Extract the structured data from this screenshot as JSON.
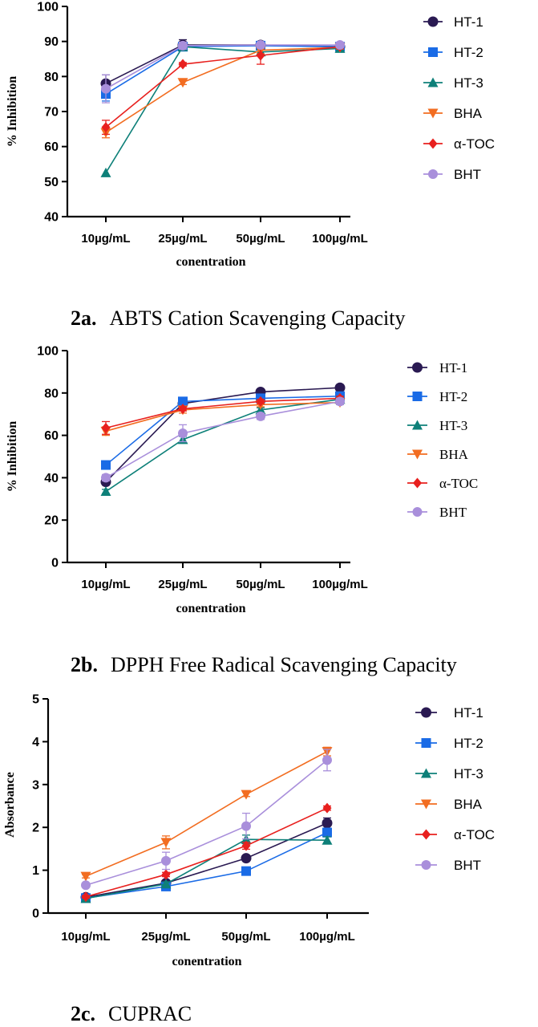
{
  "colors": {
    "HT-1": "#2a1a52",
    "HT-2": "#1a6be6",
    "HT-3": "#0e8079",
    "BHA": "#f26d21",
    "α-TOC": "#e8201e",
    "BHT": "#a98fdb"
  },
  "chart_data": [
    {
      "type": "line",
      "id": "2a",
      "title": "ABTS Cation Scavenging Capacity",
      "caption_prefix": "2a.",
      "xlabel": "conentration",
      "ylabel": "% Inhibition",
      "categories": [
        "10µg/mL",
        "25µg/mL",
        "50µg/mL",
        "100µg/mL"
      ],
      "ylim": [
        40,
        100
      ],
      "yticks": [
        40,
        50,
        60,
        70,
        80,
        90,
        100
      ],
      "series": [
        {
          "name": "HT-1",
          "values": [
            78,
            89,
            89,
            88.5
          ],
          "errors": [
            2.5,
            1.5,
            0.8,
            0.6
          ]
        },
        {
          "name": "HT-2",
          "values": [
            75,
            88.5,
            88.8,
            88.5
          ],
          "errors": [
            2,
            0.8,
            0.6,
            0.5
          ]
        },
        {
          "name": "HT-3",
          "values": [
            52.5,
            88.5,
            87,
            88
          ],
          "errors": [
            0,
            0.8,
            0.7,
            0.6
          ]
        },
        {
          "name": "BHA",
          "values": [
            64,
            78.3,
            87.5,
            88.3
          ],
          "errors": [
            1.5,
            0.6,
            1,
            0.5
          ]
        },
        {
          "name": "α-TOC",
          "values": [
            65.5,
            83.5,
            86,
            88.5
          ],
          "errors": [
            2,
            0.5,
            2.5,
            0.6
          ]
        },
        {
          "name": "BHT",
          "values": [
            76.5,
            88.8,
            89,
            89
          ],
          "errors": [
            4,
            1,
            0.8,
            0.6
          ]
        }
      ]
    },
    {
      "type": "line",
      "id": "2b",
      "title": "DPPH Free Radical Scavenging Capacity",
      "caption_prefix": "2b.",
      "xlabel": "conentration",
      "ylabel": "% Inhibition",
      "categories": [
        "10µg/mL",
        "25µg/mL",
        "50µg/mL",
        "100µg/mL"
      ],
      "ylim": [
        0,
        100
      ],
      "yticks": [
        0,
        20,
        40,
        60,
        80,
        100
      ],
      "series": [
        {
          "name": "HT-1",
          "values": [
            38,
            75,
            80.5,
            82.5
          ],
          "errors": [
            1.5,
            1.5,
            1,
            0.8
          ]
        },
        {
          "name": "HT-2",
          "values": [
            46,
            76,
            77.5,
            78.5
          ],
          "errors": [
            1,
            1,
            1,
            1
          ]
        },
        {
          "name": "HT-3",
          "values": [
            33.5,
            58,
            72,
            77
          ],
          "errors": [
            1,
            1.5,
            1,
            1
          ]
        },
        {
          "name": "BHA",
          "values": [
            62,
            72,
            74.5,
            75.5
          ],
          "errors": [
            2,
            1.5,
            1,
            1
          ]
        },
        {
          "name": "α-TOC",
          "values": [
            63.5,
            72.5,
            76,
            77.5
          ],
          "errors": [
            3,
            1,
            1,
            1
          ]
        },
        {
          "name": "BHT",
          "values": [
            40,
            61,
            69,
            76
          ],
          "errors": [
            1.5,
            4,
            1.5,
            1.5
          ]
        }
      ]
    },
    {
      "type": "line",
      "id": "2c",
      "title": "CUPRAC",
      "caption_prefix": "2c.",
      "xlabel": "conentration",
      "ylabel": "Absorbance",
      "categories": [
        "10µg/mL",
        "25µg/mL",
        "50µg/mL",
        "100µg/mL"
      ],
      "ylim": [
        0,
        5
      ],
      "yticks": [
        0,
        1,
        2,
        3,
        4,
        5
      ],
      "series": [
        {
          "name": "HT-1",
          "values": [
            0.37,
            0.7,
            1.28,
            2.1
          ],
          "errors": [
            0.03,
            0.05,
            0.05,
            0.12
          ]
        },
        {
          "name": "HT-2",
          "values": [
            0.35,
            0.62,
            0.98,
            1.88
          ],
          "errors": [
            0.03,
            0.04,
            0.05,
            0.1
          ]
        },
        {
          "name": "HT-3",
          "values": [
            0.34,
            0.68,
            1.72,
            1.7
          ],
          "errors": [
            0.03,
            0.05,
            0.1,
            0.08
          ]
        },
        {
          "name": "BHA",
          "values": [
            0.86,
            1.65,
            2.77,
            3.77
          ],
          "errors": [
            0.04,
            0.15,
            0.05,
            0.1
          ]
        },
        {
          "name": "α-TOC",
          "values": [
            0.38,
            0.9,
            1.57,
            2.45
          ],
          "errors": [
            0.03,
            0.05,
            0.08,
            0.05
          ]
        },
        {
          "name": "BHT",
          "values": [
            0.65,
            1.22,
            2.03,
            3.57
          ],
          "errors": [
            0.04,
            0.2,
            0.3,
            0.25
          ]
        }
      ]
    }
  ]
}
